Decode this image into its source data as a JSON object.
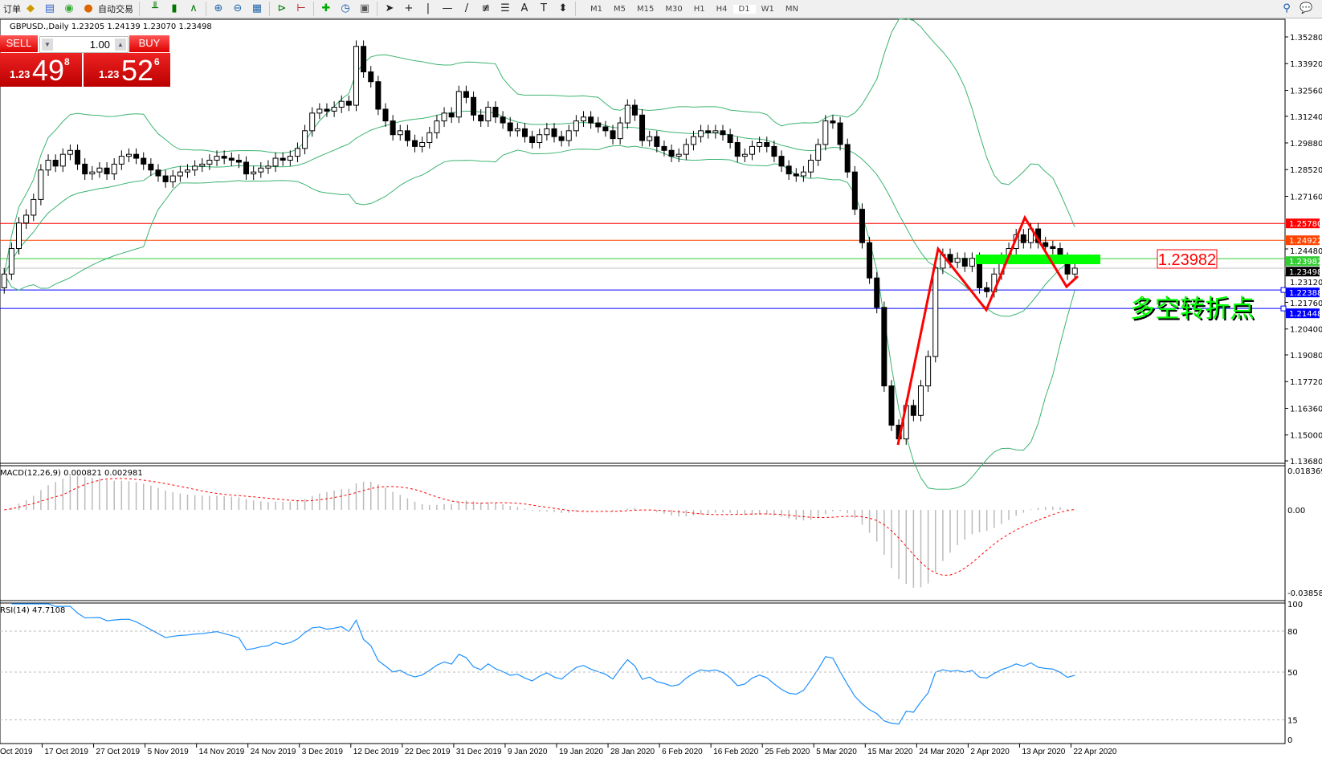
{
  "toolbar": {
    "order_label": "订单",
    "autotrade_label": "自动交易",
    "timeframes": [
      "M1",
      "M5",
      "M15",
      "M30",
      "H1",
      "H4",
      "D1",
      "W1",
      "MN"
    ],
    "active_timeframe": "D1",
    "icons": [
      "expert-icon",
      "navigator-icon",
      "signal-icon",
      "bar-chart-icon",
      "candle-chart-icon",
      "line-chart-icon",
      "zoom-in-icon",
      "zoom-out-icon",
      "tile-icon",
      "autoscroll-icon",
      "chart-shift-icon",
      "indicators-icon",
      "periods-icon",
      "templates-icon",
      "cursor-icon",
      "crosshair-icon",
      "vline-icon",
      "hline-icon",
      "trendline-icon",
      "fibo-icon",
      "channel-icon",
      "text-icon",
      "label-icon",
      "arrows-icon",
      "search-icon",
      "chat-icon"
    ]
  },
  "chart": {
    "header": "GBPUSD.,Daily  1.23205 1.24139 1.23070 1.23498",
    "trade_panel": {
      "sell_label": "SELL",
      "buy_label": "BUY",
      "lot": "1.00",
      "sell_prefix": "1.23",
      "sell_big": "49",
      "sell_sup": "8",
      "buy_prefix": "1.23",
      "buy_big": "52",
      "buy_sup": "6"
    },
    "price_axis": [
      "1.35280",
      "1.33920",
      "1.32560",
      "1.31240",
      "1.29880",
      "1.28520",
      "1.27160",
      "1.24480",
      "1.23120",
      "1.21760",
      "1.20400",
      "1.19080",
      "1.17720",
      "1.16360",
      "1.15000",
      "1.13680"
    ],
    "levels": [
      {
        "price": "1.25780",
        "color": "#ff0000"
      },
      {
        "price": "1.24922",
        "color": "#ff4500"
      },
      {
        "price": "1.23982",
        "color": "#32cd32"
      },
      {
        "price": "1.23498",
        "color": "#000000",
        "line": "#c0c0c0"
      },
      {
        "price": "1.22388",
        "color": "#0000ff"
      },
      {
        "price": "1.21448",
        "color": "#0000ff"
      }
    ],
    "annotation_price": "1.23982",
    "annotation_text": "多空转折点",
    "annotation_color": "#00ff00",
    "zigzag_color": "#ff0000",
    "band_color": "#3cb371"
  },
  "macd": {
    "label": "MACD(12,26,9) 0.000821 0.002981",
    "axis": [
      "0.018369",
      "0.00",
      "-0.038585"
    ]
  },
  "rsi": {
    "label": "RSI(14) 47.7108",
    "axis": [
      "100",
      "80",
      "50",
      "15",
      "0"
    ],
    "color": "#1e90ff"
  },
  "date_axis": [
    "Oct 2019",
    "17 Oct 2019",
    "27 Oct 2019",
    "5 Nov 2019",
    "14 Nov 2019",
    "24 Nov 2019",
    "3 Dec 2019",
    "12 Dec 2019",
    "22 Dec 2019",
    "31 Dec 2019",
    "9 Jan 2020",
    "19 Jan 2020",
    "28 Jan 2020",
    "6 Feb 2020",
    "16 Feb 2020",
    "25 Feb 2020",
    "5 Mar 2020",
    "15 Mar 2020",
    "24 Mar 2020",
    "2 Apr 2020",
    "13 Apr 2020",
    "22 Apr 2020"
  ],
  "chart_data": {
    "type": "candlestick",
    "symbol": "GBPUSD.",
    "timeframe": "Daily",
    "ylim": [
      1.1368,
      1.3528
    ],
    "closes": [
      1.232,
      1.245,
      1.258,
      1.262,
      1.27,
      1.285,
      1.29,
      1.287,
      1.293,
      1.295,
      1.288,
      1.283,
      1.284,
      1.286,
      1.283,
      1.288,
      1.292,
      1.293,
      1.291,
      1.288,
      1.285,
      1.282,
      1.279,
      1.282,
      1.284,
      1.285,
      1.287,
      1.288,
      1.29,
      1.292,
      1.291,
      1.29,
      1.289,
      1.283,
      1.284,
      1.286,
      1.287,
      1.291,
      1.29,
      1.292,
      1.296,
      1.305,
      1.314,
      1.316,
      1.315,
      1.317,
      1.32,
      1.318,
      1.348,
      1.335,
      1.33,
      1.316,
      1.31,
      1.303,
      1.305,
      1.3,
      1.297,
      1.299,
      1.304,
      1.31,
      1.314,
      1.312,
      1.325,
      1.322,
      1.313,
      1.31,
      1.317,
      1.312,
      1.309,
      1.305,
      1.306,
      1.302,
      1.299,
      1.303,
      1.306,
      1.302,
      1.3,
      1.305,
      1.31,
      1.312,
      1.309,
      1.307,
      1.305,
      1.301,
      1.309,
      1.318,
      1.313,
      1.3,
      1.302,
      1.297,
      1.295,
      1.292,
      1.293,
      1.298,
      1.302,
      1.305,
      1.304,
      1.305,
      1.303,
      1.299,
      1.292,
      1.293,
      1.297,
      1.299,
      1.297,
      1.292,
      1.287,
      1.283,
      1.282,
      1.284,
      1.29,
      1.298,
      1.31,
      1.309,
      1.298,
      1.284,
      1.265,
      1.248,
      1.23,
      1.215,
      1.175,
      1.155,
      1.148,
      1.165,
      1.16,
      1.175,
      1.19,
      1.235,
      1.242,
      1.238,
      1.24,
      1.236,
      1.24,
      1.225,
      1.223,
      1.232,
      1.24,
      1.245,
      1.252,
      1.248,
      1.255,
      1.248,
      1.246,
      1.245,
      1.24,
      1.232,
      1.235
    ]
  }
}
